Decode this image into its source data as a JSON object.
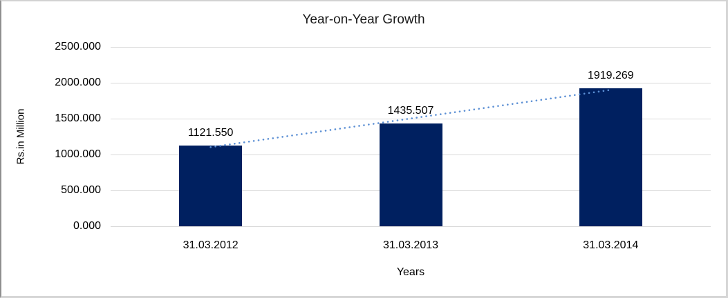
{
  "chart_data": {
    "type": "bar",
    "title": "Year-on-Year Growth",
    "xlabel": "Years",
    "ylabel": "Rs.in Million",
    "categories": [
      "31.03.2012",
      "31.03.2013",
      "31.03.2014"
    ],
    "values": [
      1121.55,
      1435.507,
      1919.269
    ],
    "data_labels": [
      "1121.550",
      "1435.507",
      "1919.269"
    ],
    "y_ticks": [
      "2500.000",
      "2000.000",
      "1500.000",
      "1000.000",
      "500.000",
      "0.000"
    ],
    "ylim": [
      0,
      2500
    ],
    "grid": true,
    "legend": "none",
    "trendline": "linear-dotted",
    "colors": {
      "bar": "#002060",
      "trendline": "#5b8fd4",
      "gridline": "#d9d9d9",
      "text": "#000000"
    }
  }
}
